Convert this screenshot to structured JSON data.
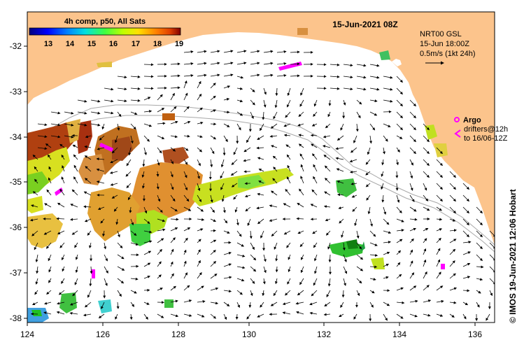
{
  "map": {
    "title": "15-Jun-2021 08Z",
    "product_label": "4h comp, p50, All Sats",
    "colorbar": {
      "ticks": [
        "13",
        "14",
        "15",
        "16",
        "17",
        "18",
        "19"
      ],
      "colors": [
        "#00007f",
        "#0000ff",
        "#0080ff",
        "#00e0e0",
        "#40ff40",
        "#c0ff00",
        "#ffe000",
        "#ff8000",
        "#e04000",
        "#800000"
      ]
    },
    "lon_labels": [
      "124",
      "126",
      "128",
      "130",
      "132",
      "134",
      "136"
    ],
    "lat_labels": [
      "-32",
      "-33",
      "-34",
      "-35",
      "-36",
      "-37",
      "-38"
    ],
    "current_info": {
      "model": "NRT00 GSL",
      "time": "15-Jun 18:00Z",
      "scale": "0.5m/s (1kt 24h)"
    },
    "argo": {
      "label": "Argo",
      "drifters_line1": "drifters@12h",
      "drifters_line2": "to 16/06-12Z"
    },
    "credit": "© IMOS 19-Jun-2021 12:06 Hobart",
    "colors": {
      "land": "#fcc48c",
      "ocean": "#ffffff",
      "argo": "#ff00ff",
      "bathymetry": "#a8a8a8"
    }
  }
}
